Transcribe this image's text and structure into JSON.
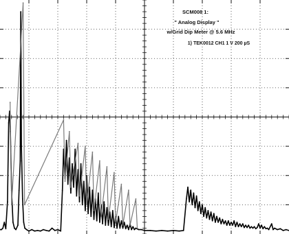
{
  "chart_data": {
    "type": "line",
    "screen": {
      "divisions_x": 10,
      "divisions_y": 8,
      "grid": true,
      "minor_ticks_per_division": 5,
      "center_axes": true
    },
    "annotation": {
      "line1": "SCM008 1:",
      "line2": "\" Analog Display \"",
      "line3": "w/Grid Dip Meter @ 5.6 MHz",
      "line4": "1) TEK0012   CH1   1   V     200  µS"
    },
    "series": [
      {
        "trace": "CH1",
        "color": "#000000",
        "points": [
          [
            0,
            0.15
          ],
          [
            0.05,
            0.15
          ],
          [
            0.1,
            0.2
          ],
          [
            0.15,
            0.4
          ],
          [
            0.2,
            0.18
          ],
          [
            0.26,
            1.1
          ],
          [
            0.3,
            3.8
          ],
          [
            0.33,
            4.2
          ],
          [
            0.36,
            3.5
          ],
          [
            0.4,
            1.5
          ],
          [
            0.45,
            0.4
          ],
          [
            0.5,
            0.2
          ],
          [
            0.55,
            0.15
          ],
          [
            0.62,
            0.3
          ],
          [
            0.66,
            1.5
          ],
          [
            0.7,
            2.5
          ],
          [
            0.72,
            7.6
          ],
          [
            0.74,
            3.0
          ],
          [
            0.78,
            1.2
          ],
          [
            0.82,
            0.4
          ],
          [
            0.86,
            0.2
          ],
          [
            0.92,
            0.15
          ],
          [
            1.0,
            0.1
          ],
          [
            1.1,
            0.15
          ],
          [
            1.2,
            0.1
          ],
          [
            1.3,
            0.12
          ],
          [
            1.4,
            0.1
          ],
          [
            1.5,
            0.15
          ],
          [
            1.6,
            0.12
          ],
          [
            1.7,
            0.1
          ],
          [
            1.8,
            0.2
          ],
          [
            1.9,
            0.12
          ],
          [
            2.0,
            0.15
          ],
          [
            2.1,
            0.1
          ],
          [
            2.16,
            1.5
          ],
          [
            2.2,
            2.9
          ],
          [
            2.25,
            1.9
          ],
          [
            2.3,
            3.2
          ],
          [
            2.35,
            1.7
          ],
          [
            2.4,
            2.6
          ],
          [
            2.45,
            1.4
          ],
          [
            2.5,
            2.4
          ],
          [
            2.55,
            1.6
          ],
          [
            2.6,
            2.9
          ],
          [
            2.65,
            1.3
          ],
          [
            2.7,
            2.2
          ],
          [
            2.75,
            1.1
          ],
          [
            2.8,
            2.4
          ],
          [
            2.85,
            1.0
          ],
          [
            2.9,
            1.8
          ],
          [
            2.95,
            0.8
          ],
          [
            3.0,
            2.0
          ],
          [
            3.05,
            0.7
          ],
          [
            3.1,
            1.6
          ],
          [
            3.15,
            0.6
          ],
          [
            3.2,
            1.5
          ],
          [
            3.25,
            0.5
          ],
          [
            3.3,
            1.2
          ],
          [
            3.35,
            0.45
          ],
          [
            3.4,
            1.4
          ],
          [
            3.45,
            0.4
          ],
          [
            3.5,
            1.0
          ],
          [
            3.55,
            0.35
          ],
          [
            3.6,
            1.1
          ],
          [
            3.65,
            0.3
          ],
          [
            3.7,
            0.9
          ],
          [
            3.75,
            0.3
          ],
          [
            3.8,
            0.75
          ],
          [
            3.85,
            0.25
          ],
          [
            3.9,
            0.8
          ],
          [
            3.95,
            0.22
          ],
          [
            4.0,
            0.6
          ],
          [
            4.05,
            0.2
          ],
          [
            4.1,
            0.6
          ],
          [
            4.15,
            0.2
          ],
          [
            4.2,
            0.45
          ],
          [
            4.25,
            0.2
          ],
          [
            4.3,
            0.4
          ],
          [
            4.35,
            0.18
          ],
          [
            4.4,
            0.3
          ],
          [
            4.45,
            0.15
          ],
          [
            4.5,
            0.35
          ],
          [
            4.55,
            0.15
          ],
          [
            4.6,
            0.25
          ],
          [
            4.65,
            0.15
          ],
          [
            4.7,
            0.2
          ],
          [
            4.8,
            0.15
          ],
          [
            4.9,
            0.15
          ],
          [
            5.0,
            0.12
          ],
          [
            5.2,
            0.12
          ],
          [
            5.4,
            0.1
          ],
          [
            5.6,
            0.12
          ],
          [
            5.8,
            0.1
          ],
          [
            6.0,
            0.12
          ],
          [
            6.2,
            0.1
          ],
          [
            6.35,
            0.12
          ],
          [
            6.45,
            1.2
          ],
          [
            6.5,
            1.6
          ],
          [
            6.55,
            1.1
          ],
          [
            6.6,
            1.5
          ],
          [
            6.65,
            1.0
          ],
          [
            6.7,
            1.4
          ],
          [
            6.75,
            0.9
          ],
          [
            6.8,
            1.3
          ],
          [
            6.85,
            0.8
          ],
          [
            6.9,
            1.1
          ],
          [
            6.95,
            0.7
          ],
          [
            7.0,
            1.0
          ],
          [
            7.05,
            0.6
          ],
          [
            7.1,
            0.9
          ],
          [
            7.15,
            0.55
          ],
          [
            7.2,
            0.8
          ],
          [
            7.25,
            0.5
          ],
          [
            7.3,
            0.75
          ],
          [
            7.35,
            0.45
          ],
          [
            7.4,
            0.7
          ],
          [
            7.45,
            0.4
          ],
          [
            7.5,
            0.6
          ],
          [
            7.55,
            0.4
          ],
          [
            7.6,
            0.55
          ],
          [
            7.65,
            0.35
          ],
          [
            7.7,
            0.5
          ],
          [
            7.75,
            0.35
          ],
          [
            7.8,
            0.45
          ],
          [
            7.85,
            0.3
          ],
          [
            7.9,
            0.45
          ],
          [
            7.95,
            0.3
          ],
          [
            8.0,
            0.4
          ],
          [
            8.05,
            0.3
          ],
          [
            8.1,
            0.45
          ],
          [
            8.15,
            0.25
          ],
          [
            8.2,
            0.4
          ],
          [
            8.25,
            0.25
          ],
          [
            8.3,
            0.35
          ],
          [
            8.35,
            0.25
          ],
          [
            8.4,
            0.35
          ],
          [
            8.45,
            0.22
          ],
          [
            8.5,
            0.3
          ],
          [
            8.55,
            0.22
          ],
          [
            8.6,
            0.3
          ],
          [
            8.65,
            0.2
          ],
          [
            8.7,
            0.25
          ],
          [
            8.75,
            0.2
          ],
          [
            8.8,
            0.25
          ],
          [
            8.85,
            0.18
          ],
          [
            8.9,
            0.22
          ],
          [
            8.95,
            0.35
          ],
          [
            9.0,
            0.2
          ],
          [
            9.05,
            0.3
          ],
          [
            9.1,
            0.18
          ],
          [
            9.15,
            0.25
          ],
          [
            9.2,
            0.18
          ],
          [
            9.25,
            0.2
          ],
          [
            9.3,
            0.15
          ],
          [
            9.4,
            0.35
          ],
          [
            9.45,
            0.15
          ],
          [
            9.5,
            0.2
          ],
          [
            9.6,
            0.15
          ],
          [
            9.7,
            0.18
          ],
          [
            9.8,
            0.12
          ],
          [
            9.9,
            0.15
          ],
          [
            10.0,
            0.12
          ]
        ]
      },
      {
        "trace": "envelope",
        "color": "#7a7a7a",
        "points": [
          [
            0.35,
            4.5
          ],
          [
            0.4,
            1.0
          ],
          [
            0.8,
            7.9
          ],
          [
            0.85,
            1.0
          ],
          [
            2.2,
            3.9
          ],
          [
            2.25,
            1.8
          ],
          [
            2.4,
            3.5
          ],
          [
            2.45,
            1.6
          ],
          [
            2.7,
            3.1
          ],
          [
            2.75,
            1.3
          ],
          [
            2.95,
            3.0
          ],
          [
            3.0,
            1.0
          ],
          [
            3.2,
            2.8
          ],
          [
            3.25,
            0.8
          ],
          [
            3.45,
            2.5
          ],
          [
            3.5,
            0.6
          ],
          [
            3.7,
            2.3
          ],
          [
            3.75,
            0.5
          ],
          [
            3.95,
            2.1
          ],
          [
            4.0,
            0.4
          ],
          [
            4.2,
            1.7
          ],
          [
            4.25,
            0.3
          ],
          [
            4.45,
            1.5
          ],
          [
            4.5,
            0.3
          ],
          [
            4.7,
            1.2
          ],
          [
            4.75,
            0.2
          ]
        ]
      }
    ]
  }
}
